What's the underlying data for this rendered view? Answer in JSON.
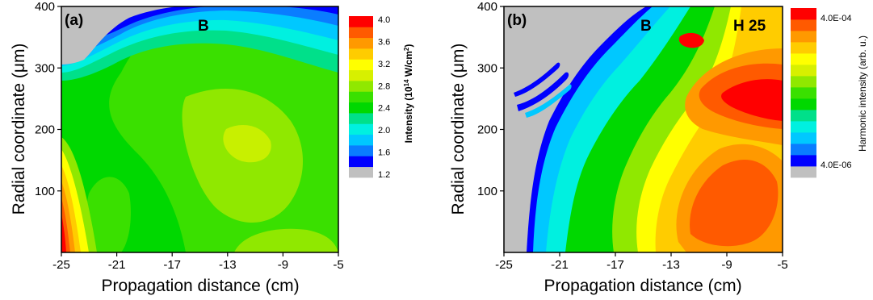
{
  "chart_data": [
    {
      "type": "heatmap",
      "panel_label": "(a)",
      "annotations": [
        "B"
      ],
      "xlabel": "Propagation distance (cm)",
      "ylabel": "Radial coordinate (μm)",
      "xlim": [
        -25,
        -5
      ],
      "ylim": [
        0,
        400
      ],
      "x_ticks": [
        "-25",
        "-21",
        "-17",
        "-13",
        "-9",
        "-5"
      ],
      "y_ticks": [
        "100",
        "200",
        "300",
        "400"
      ],
      "colorbar": {
        "title": "Intensity (10",
        "title_sup": "14",
        "title_end": " W/cm",
        "title_sup2": "2",
        "title_close": ")",
        "tick_labels": [
          "4.0",
          "3.6",
          "3.2",
          "2.8",
          "2.4",
          "2.0",
          "1.6",
          "1.2"
        ],
        "levels": [
          1.2,
          4.0
        ]
      }
    },
    {
      "type": "heatmap",
      "panel_label": "(b)",
      "annotations": [
        "B",
        "H 25"
      ],
      "xlabel": "Propagation distance (cm)",
      "ylabel": "Radial coordinate (μm)",
      "xlim": [
        -25,
        -5
      ],
      "ylim": [
        0,
        400
      ],
      "x_ticks": [
        "-25",
        "-21",
        "-17",
        "-13",
        "-9",
        "-5"
      ],
      "y_ticks": [
        "100",
        "200",
        "300",
        "400"
      ],
      "colorbar": {
        "title": "Harmonic intensity (arb. u.)",
        "tick_labels": [
          "4.0E-04",
          "4.0E-06"
        ],
        "levels": [
          4e-06,
          0.0004
        ],
        "scale": "log"
      }
    }
  ],
  "colors": {
    "gray": "#c0c0c0",
    "palette": [
      "#0000ff",
      "#0a7dff",
      "#00c8ff",
      "#00f0e0",
      "#00e08a",
      "#00d800",
      "#3ae000",
      "#90e800",
      "#d7f000",
      "#ffff00",
      "#ffcc00",
      "#ff9900",
      "#ff5a00",
      "#ff0000"
    ]
  }
}
